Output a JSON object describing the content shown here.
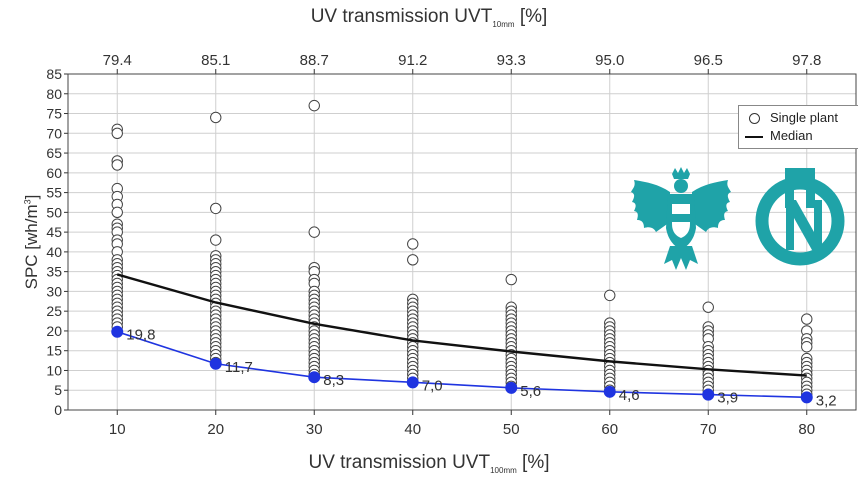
{
  "chart_data": {
    "type": "scatter",
    "top_axis": {
      "label_main": "UV transmission UVT",
      "label_sub": "10mm",
      "label_unit": " [%]",
      "ticks": [
        "79.4",
        "85.1",
        "88.7",
        "91.2",
        "93.3",
        "95.0",
        "96.5",
        "97.8"
      ]
    },
    "bottom_axis": {
      "label_main": "UV transmission UVT",
      "label_sub": "100mm",
      "label_unit": " [%]",
      "ticks": [
        "10",
        "20",
        "30",
        "40",
        "50",
        "60",
        "70",
        "80"
      ]
    },
    "y_axis": {
      "label_main": "SPC [wh/m",
      "label_sup": "3",
      "label_end": "]",
      "ylim": [
        0,
        85
      ],
      "ticks": [
        0,
        5,
        10,
        15,
        20,
        25,
        30,
        35,
        40,
        45,
        50,
        55,
        60,
        65,
        70,
        75,
        80,
        85
      ]
    },
    "x": [
      10,
      20,
      30,
      40,
      50,
      60,
      70,
      80
    ],
    "xlim": [
      5,
      85
    ],
    "grid": true,
    "legend_position": "top-right",
    "series": [
      {
        "name": "Single plant",
        "kind": "scatter",
        "points": {
          "10": [
            71,
            70,
            63,
            62,
            56,
            54,
            52,
            50,
            47,
            46,
            45,
            43,
            42,
            40,
            38,
            37,
            36,
            35,
            34,
            33,
            32,
            31,
            30,
            29,
            28,
            27,
            26,
            25,
            24,
            23,
            22,
            21
          ],
          "20": [
            74,
            51,
            43,
            39,
            38,
            37,
            36,
            35,
            34,
            33,
            32,
            31,
            30,
            29,
            28,
            27,
            26,
            25,
            24,
            23,
            22,
            21,
            20,
            19,
            18,
            17,
            16,
            15,
            14,
            13,
            12
          ],
          "30": [
            77,
            45,
            36,
            35,
            33,
            32,
            30,
            29,
            28,
            27,
            26,
            25,
            24,
            23,
            22,
            21,
            20,
            19,
            18,
            17,
            16,
            15,
            14,
            13,
            12,
            11,
            10,
            9
          ],
          "40": [
            42,
            38,
            28,
            27,
            26,
            25,
            24,
            23,
            22,
            21,
            20,
            19,
            18,
            17,
            16,
            15,
            14,
            13,
            12,
            11,
            10,
            9,
            8,
            7
          ],
          "50": [
            33,
            26,
            25,
            24,
            23,
            22,
            21,
            20,
            19,
            18,
            17,
            16,
            15,
            14,
            13,
            12,
            11,
            10,
            9,
            8,
            7,
            6
          ],
          "60": [
            29,
            22,
            21,
            20,
            19,
            18,
            17,
            16,
            15,
            14,
            13,
            12,
            11,
            10,
            9,
            8,
            7,
            6,
            5
          ],
          "70": [
            26,
            21,
            20,
            19,
            18,
            16,
            15,
            14,
            13,
            12,
            11,
            10,
            9,
            8,
            7,
            6,
            5,
            4
          ],
          "80": [
            23,
            20,
            18,
            17,
            16,
            13,
            12,
            11,
            10,
            9,
            8,
            7,
            6,
            5,
            4
          ]
        }
      },
      {
        "name": "Median",
        "kind": "line",
        "x": [
          10,
          20,
          30,
          40,
          50,
          60,
          70,
          80
        ],
        "values": [
          34.3,
          27.2,
          21.8,
          17.6,
          14.8,
          12.3,
          10.3,
          8.7
        ]
      },
      {
        "name": "",
        "kind": "line-markers",
        "x": [
          10,
          20,
          30,
          40,
          50,
          60,
          70,
          80
        ],
        "values": [
          19.8,
          11.7,
          8.3,
          7.0,
          5.6,
          4.6,
          3.9,
          3.2
        ],
        "labels": [
          "19,8",
          "11,7",
          "8,3",
          "7,0",
          "5,6",
          "4,6",
          "3,9",
          "3,2"
        ],
        "color": "#1f34e0"
      }
    ],
    "legend": [
      "Single plant",
      "Median"
    ]
  },
  "colors": {
    "marker_line": "#1f34e0",
    "median_line": "#111111",
    "logo_teal": "#1fa3a8",
    "grid": "#cfcfcf"
  }
}
